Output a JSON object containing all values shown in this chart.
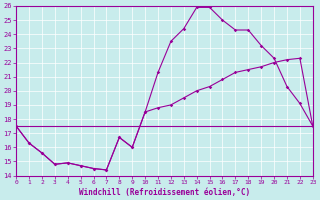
{
  "xlabel": "Windchill (Refroidissement éolien,°C)",
  "ylim": [
    14,
    26
  ],
  "xlim": [
    0,
    23
  ],
  "yticks": [
    14,
    15,
    16,
    17,
    18,
    19,
    20,
    21,
    22,
    23,
    24,
    25,
    26
  ],
  "xticks": [
    0,
    1,
    2,
    3,
    4,
    5,
    6,
    7,
    8,
    9,
    10,
    11,
    12,
    13,
    14,
    15,
    16,
    17,
    18,
    19,
    20,
    21,
    22,
    23
  ],
  "bg_color": "#c8ecec",
  "line_color": "#990099",
  "line1_x": [
    0,
    1,
    2,
    3,
    4,
    5,
    6,
    7,
    8,
    9,
    10,
    11,
    12,
    13,
    14,
    15,
    16,
    17,
    18,
    19,
    20,
    21,
    22,
    23
  ],
  "line1_y": [
    17.5,
    16.3,
    15.6,
    14.8,
    14.9,
    14.7,
    14.5,
    14.4,
    16.7,
    16.0,
    18.5,
    21.3,
    23.5,
    24.4,
    25.9,
    25.9,
    25.0,
    24.3,
    24.3,
    23.2,
    22.3,
    20.3,
    19.1,
    17.5
  ],
  "line2_x": [
    0,
    1,
    2,
    3,
    4,
    5,
    6,
    7,
    8,
    9,
    10,
    11,
    12,
    13,
    14,
    15,
    16,
    17,
    18,
    19,
    20,
    21,
    22,
    23
  ],
  "line2_y": [
    17.5,
    16.3,
    15.6,
    14.8,
    14.9,
    14.7,
    14.5,
    14.4,
    16.7,
    16.0,
    18.5,
    18.8,
    19.0,
    19.5,
    20.0,
    20.3,
    20.8,
    21.3,
    21.5,
    21.7,
    22.0,
    22.2,
    22.3,
    17.5
  ],
  "line3_x": [
    0,
    23
  ],
  "line3_y": [
    17.5,
    17.5
  ],
  "grid_color": "#ffffff",
  "tick_fontsize": 5,
  "xlabel_fontsize": 5.5
}
